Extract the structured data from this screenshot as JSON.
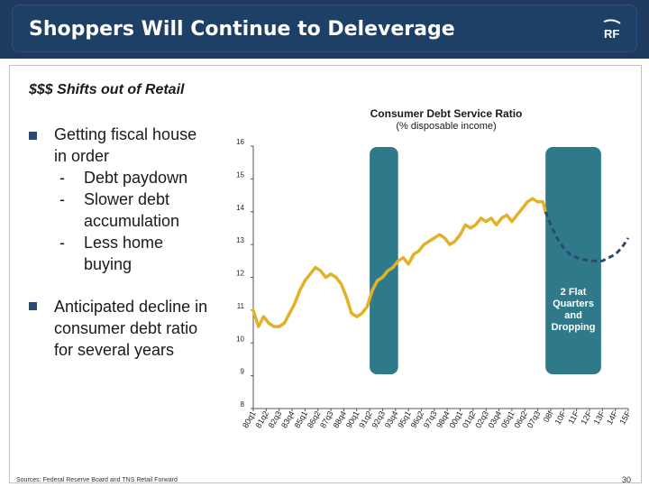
{
  "header": {
    "title": "Shoppers Will Continue to Deleverage",
    "logo_text": "RF"
  },
  "subtitle": "$$$ Shifts out of Retail",
  "bullets": {
    "b1_line1": "Getting fiscal house",
    "b1_line2": "in order",
    "b1_sub1_dash": "-",
    "b1_sub1": "Debt paydown",
    "b1_sub2_dash": "-",
    "b1_sub2_l1": "Slower debt",
    "b1_sub2_l2": "accumulation",
    "b1_sub3_dash": "-",
    "b1_sub3_l1": "Less home",
    "b1_sub3_l2": "buying",
    "b2_line1": "Anticipated decline in",
    "b2_line2": "consumer debt ratio",
    "b2_line3": "for several years"
  },
  "chart_data": {
    "type": "line",
    "title": "Consumer Debt Service Ratio",
    "subtitle": "(% disposable income)",
    "ylim": [
      8,
      16
    ],
    "yticks": [
      "16",
      "15",
      "14",
      "13",
      "12",
      "11",
      "10",
      "9",
      "8"
    ],
    "categories": [
      "80q1",
      "81q2",
      "82q3",
      "83q4",
      "85q1",
      "86q2",
      "87q3",
      "88q4",
      "90q1",
      "91q2",
      "92q3",
      "93q4",
      "95q1",
      "96q2",
      "97q3",
      "98q4",
      "00q1",
      "01q2",
      "02q3",
      "03q4",
      "05q1",
      "06q2",
      "07q3",
      "08f",
      "10F",
      "11F",
      "12F",
      "13F",
      "14F",
      "15F"
    ],
    "series": [
      {
        "style": "solid",
        "color": "#e3b128",
        "x": [
          0.0,
          0.4,
          0.8,
          1.2,
          1.6,
          2.0,
          2.4,
          2.8,
          3.2,
          3.6,
          4.0,
          4.4,
          4.8,
          5.2,
          5.6,
          6.0,
          6.4,
          6.8,
          7.2,
          7.6,
          8.0,
          8.4,
          8.8,
          9.2,
          9.6,
          10.0,
          10.4,
          10.8,
          11.2,
          11.6,
          12.0,
          12.4,
          12.8,
          13.2,
          13.6,
          14.0,
          14.4,
          14.8,
          15.2,
          15.6,
          16.0,
          16.4,
          16.8,
          17.2,
          17.6,
          18.0,
          18.4,
          18.8,
          19.2,
          19.6,
          20.0,
          20.4,
          20.8,
          21.2,
          21.6,
          22.0,
          22.4,
          22.6
        ],
        "y": [
          11.0,
          10.5,
          10.8,
          10.6,
          10.5,
          10.5,
          10.6,
          10.9,
          11.2,
          11.6,
          11.9,
          12.1,
          12.3,
          12.2,
          12.0,
          12.1,
          12.0,
          11.8,
          11.4,
          10.9,
          10.8,
          10.9,
          11.1,
          11.6,
          11.9,
          12.0,
          12.2,
          12.3,
          12.5,
          12.6,
          12.4,
          12.7,
          12.8,
          13.0,
          13.1,
          13.2,
          13.3,
          13.2,
          13.0,
          13.1,
          13.3,
          13.6,
          13.5,
          13.6,
          13.8,
          13.7,
          13.8,
          13.6,
          13.8,
          13.9,
          13.7,
          13.9,
          14.1,
          14.3,
          14.4,
          14.3,
          14.3,
          14.0
        ]
      },
      {
        "style": "dashed",
        "color": "#2b4a70",
        "x": [
          22.6,
          23.0,
          23.5,
          24.0,
          24.5,
          25.0,
          25.5,
          26.0,
          26.5,
          27.0,
          27.5,
          28.0,
          28.5,
          29.0
        ],
        "y": [
          14.0,
          13.6,
          13.2,
          12.9,
          12.7,
          12.6,
          12.55,
          12.5,
          12.5,
          12.5,
          12.6,
          12.7,
          12.9,
          13.2
        ]
      }
    ],
    "shaded_regions": [
      {
        "x0": 9.0,
        "x1": 11.2
      },
      {
        "x0": 22.6,
        "x1": 26.9,
        "label_lines": [
          "2 Flat",
          "Quarters",
          "and",
          "Dropping"
        ]
      }
    ],
    "shade_color": "#2f7a8a",
    "grid": false
  },
  "footer": {
    "source": "Sources: Federal Reserve Board and TNS Retail Forward",
    "page_number": "30"
  }
}
